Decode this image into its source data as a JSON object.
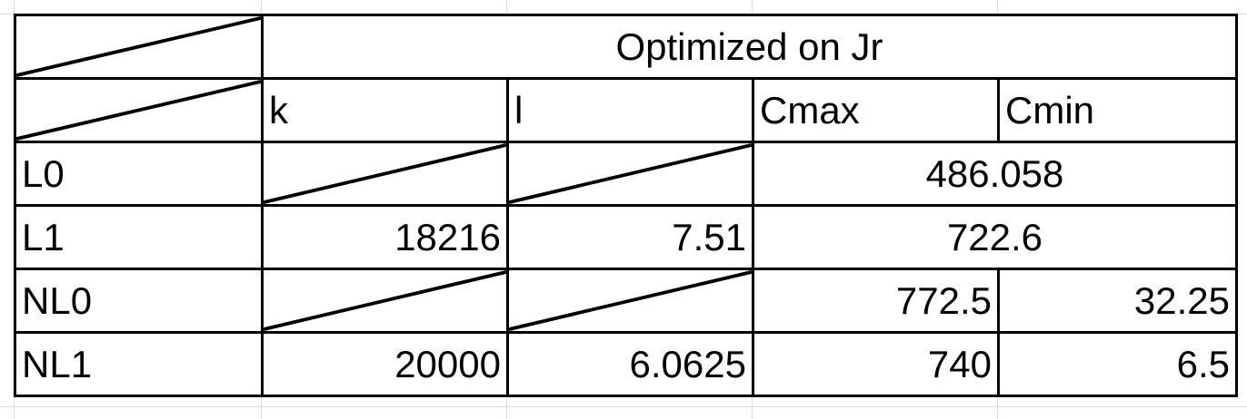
{
  "table": {
    "group_header": "Optimized on Jr",
    "columns": [
      "k",
      "l",
      "Cmax",
      "Cmin"
    ],
    "rows": [
      {
        "label": "L0",
        "k": "",
        "l": "",
        "c_merged": "486.058"
      },
      {
        "label": "L1",
        "k": "18216",
        "l": "7.51",
        "c_merged": "722.6"
      },
      {
        "label": "NL0",
        "k": "",
        "l": "",
        "cmax": "772.5",
        "cmin": "32.25"
      },
      {
        "label": "NL1",
        "k": "20000",
        "l": "6.0625",
        "cmax": "740",
        "cmin": "6.5"
      }
    ]
  }
}
